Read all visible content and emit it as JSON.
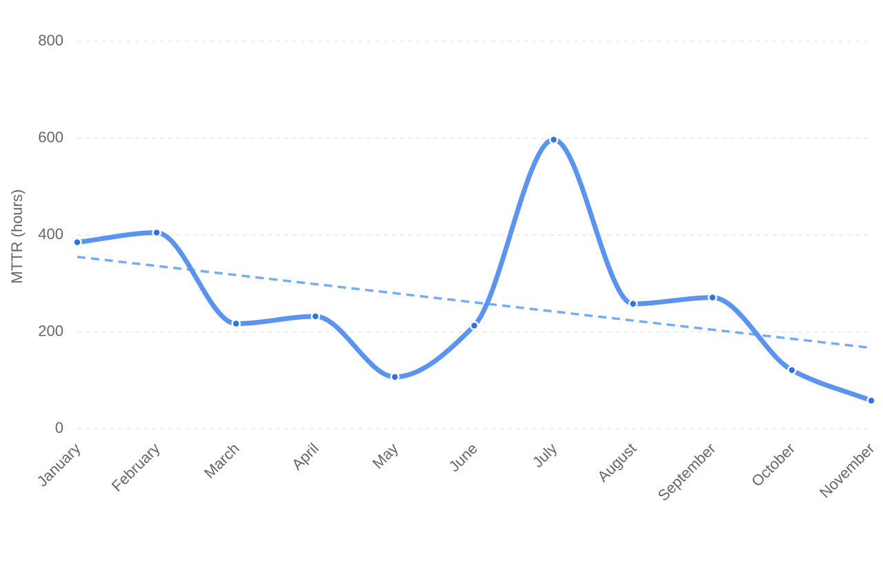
{
  "chart_data": {
    "type": "line",
    "title": "",
    "xlabel": "",
    "ylabel": "MTTR (hours)",
    "categories": [
      "January",
      "February",
      "March",
      "April",
      "May",
      "June",
      "July",
      "August",
      "September",
      "October",
      "November"
    ],
    "series": [
      {
        "values": [
          385,
          405,
          217,
          232,
          107,
          213,
          597,
          258,
          271,
          121,
          58
        ],
        "color": "#5b94ef",
        "smooth": true,
        "markers": true
      }
    ],
    "trendline": {
      "type": "linear",
      "start": 355,
      "end": 167,
      "color": "#72adf5",
      "style": "dashed"
    },
    "ylim": [
      0,
      800
    ],
    "yticks": [
      0,
      200,
      400,
      600,
      800
    ],
    "grid": true,
    "legend": "none"
  }
}
